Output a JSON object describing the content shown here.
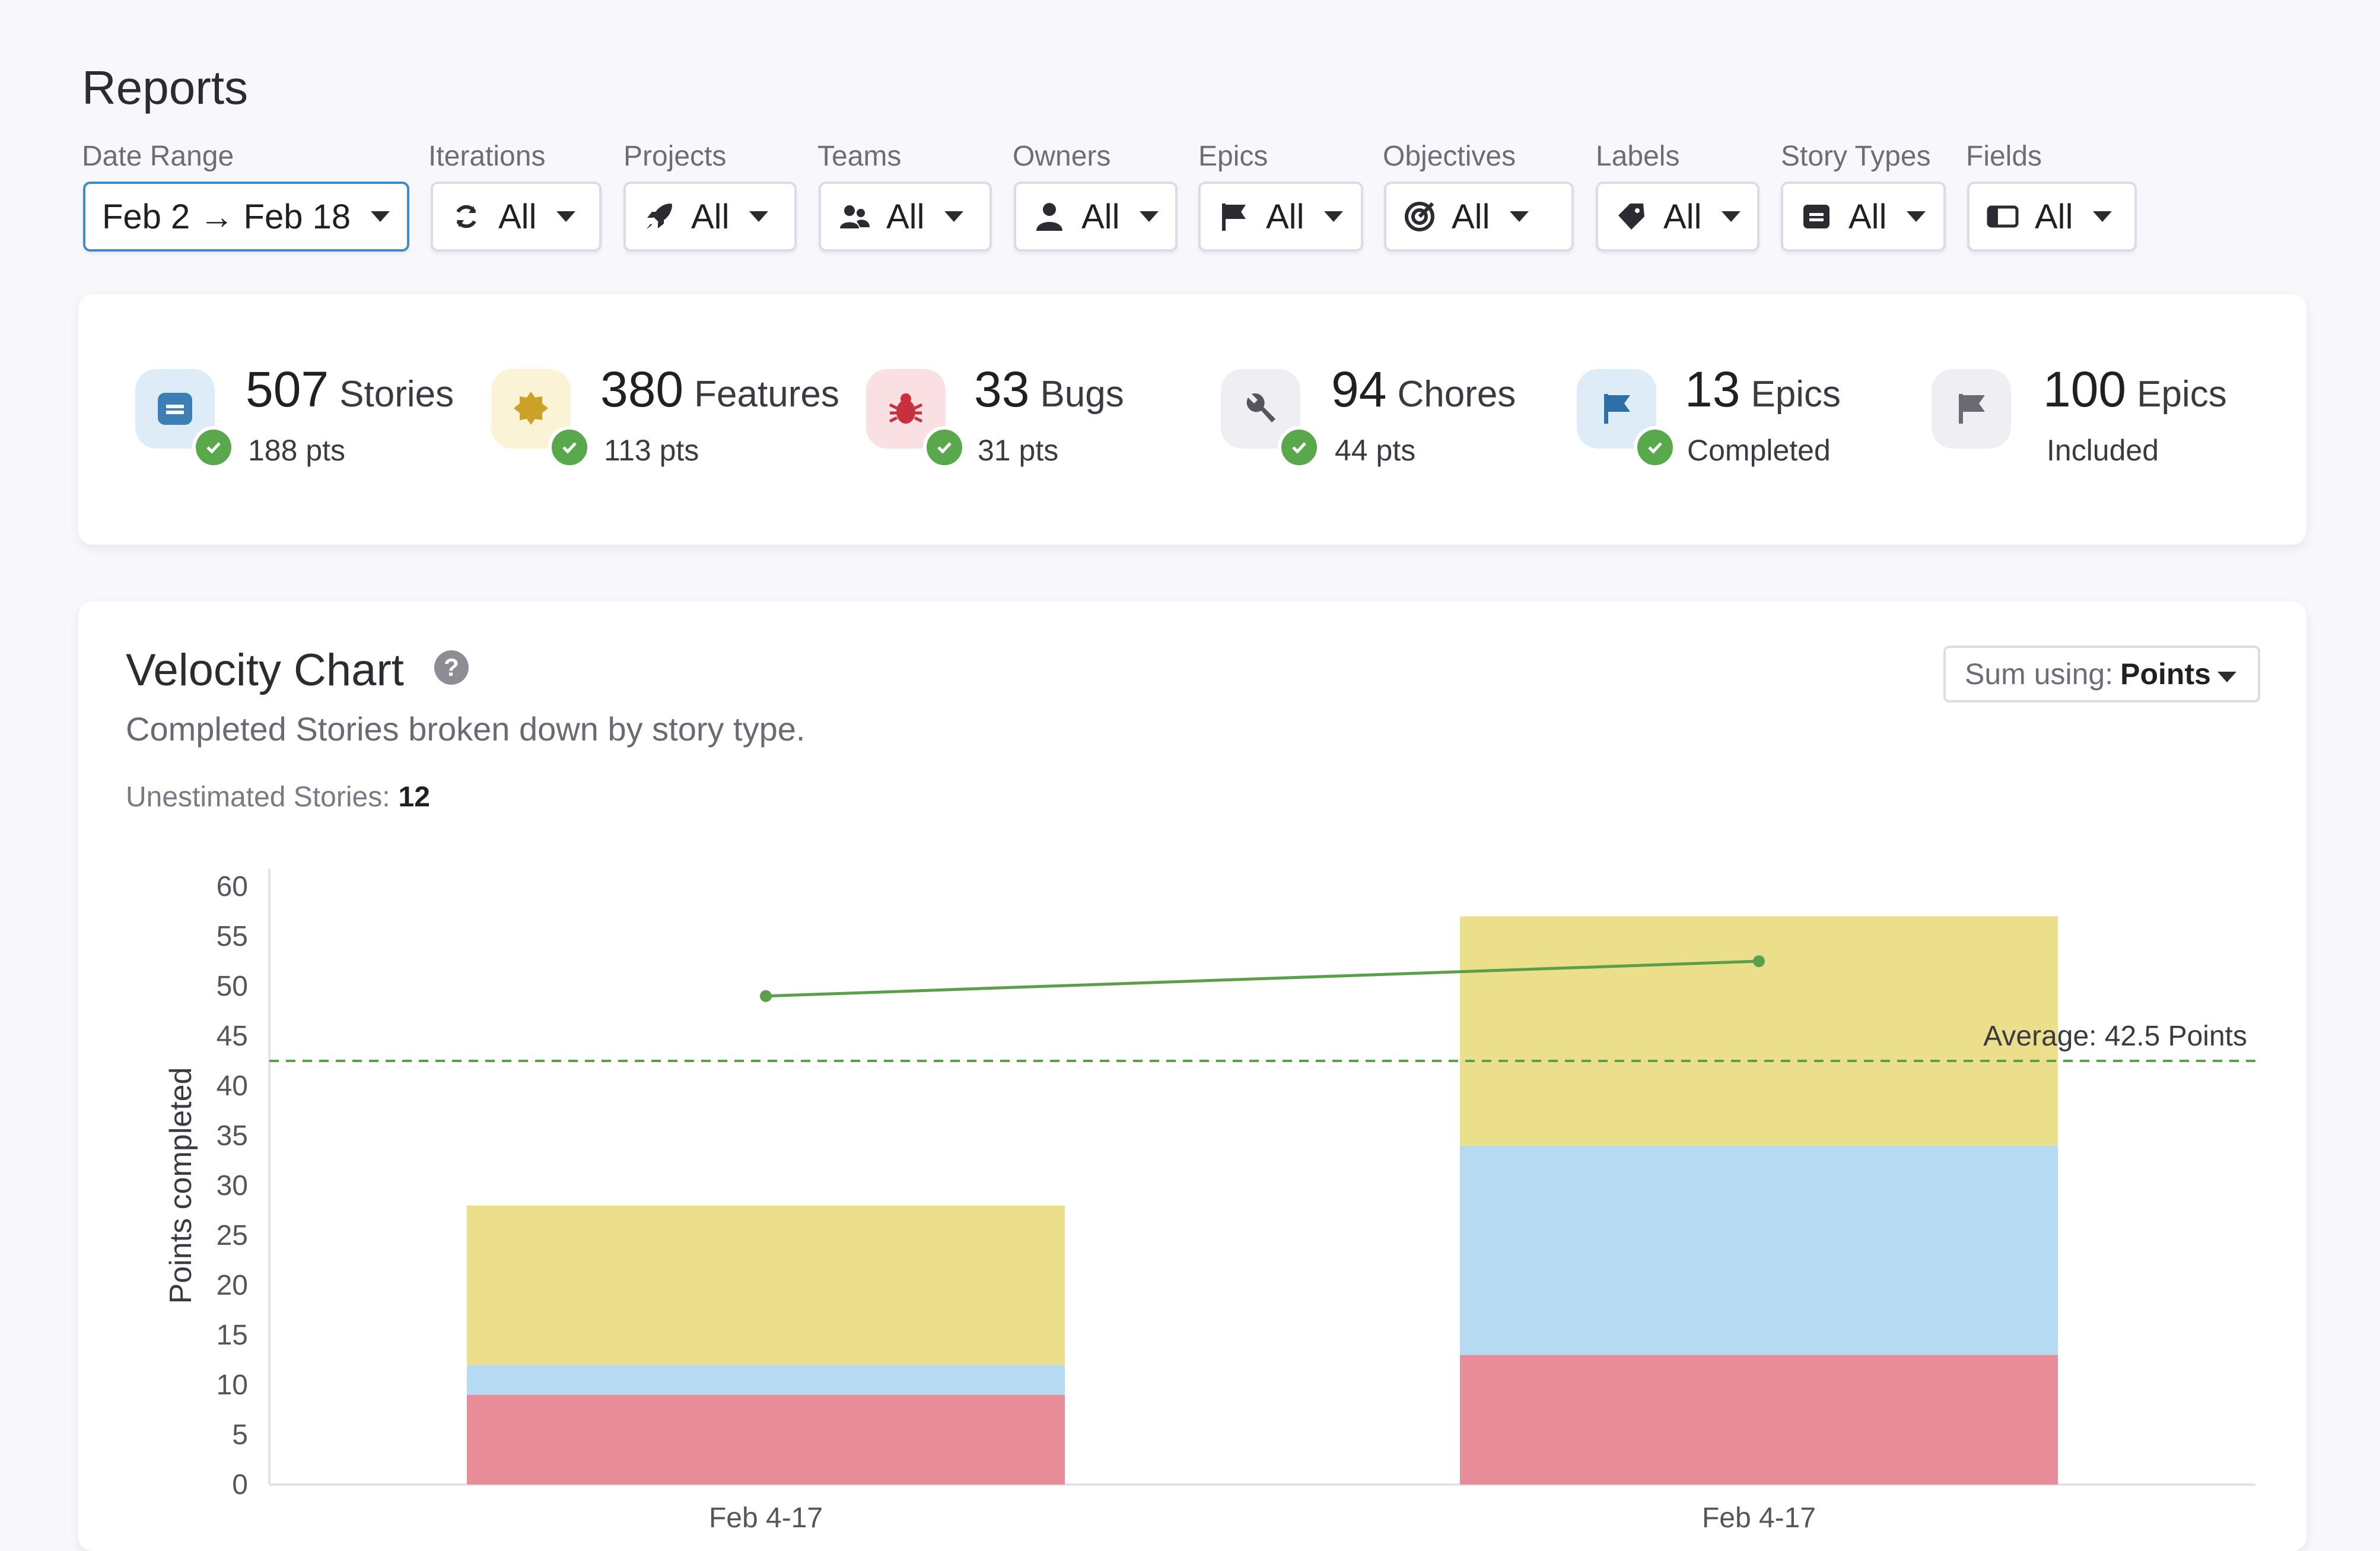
{
  "page": {
    "title": "Reports"
  },
  "filters": [
    {
      "label": "Date Range",
      "value": "Feb 2 → Feb 18",
      "icon": "none"
    },
    {
      "label": "Iterations",
      "value": "All",
      "icon": "iteration-icon"
    },
    {
      "label": "Projects",
      "value": "All",
      "icon": "rocket-icon"
    },
    {
      "label": "Teams",
      "value": "All",
      "icon": "team-icon"
    },
    {
      "label": "Owners",
      "value": "All",
      "icon": "user-icon"
    },
    {
      "label": "Epics",
      "value": "All",
      "icon": "flag-icon"
    },
    {
      "label": "Objectives",
      "value": "All",
      "icon": "target-icon"
    },
    {
      "label": "Labels",
      "value": "All",
      "icon": "tag-icon"
    },
    {
      "label": "Story Types",
      "value": "All",
      "icon": "card-icon"
    },
    {
      "label": "Fields",
      "value": "All",
      "icon": "field-icon"
    }
  ],
  "summary": [
    {
      "number": "507",
      "word": "Stories",
      "sub": "188 pts",
      "icon": "story-icon",
      "completed": true,
      "color": "#3d7fb5",
      "bg": "#deecf8"
    },
    {
      "number": "380",
      "word": "Features",
      "sub": "113 pts",
      "icon": "feature-icon",
      "completed": true,
      "color": "#c9a227",
      "bg": "#fbf3d6"
    },
    {
      "number": "33",
      "word": "Bugs",
      "sub": "31 pts",
      "icon": "bug-icon",
      "completed": true,
      "color": "#c9303e",
      "bg": "#fbe0e3"
    },
    {
      "number": "94",
      "word": "Chores",
      "sub": "44 pts",
      "icon": "wrench-icon",
      "completed": true,
      "color": "#55555e",
      "bg": "#efeff3"
    },
    {
      "number": "13",
      "word": "Epics",
      "sub": "Completed",
      "icon": "flag-icon",
      "completed": true,
      "color": "#2e6fa8",
      "bg": "#deecf8"
    },
    {
      "number": "100",
      "word": "Epics",
      "sub": "Included",
      "icon": "flag-icon",
      "completed": false,
      "color": "#6a6a74",
      "bg": "#efeff3"
    }
  ],
  "velocity": {
    "title": "Velocity Chart",
    "subtitle": "Completed Stories broken down by story type.",
    "unestimated_label": "Unestimated Stories:",
    "unestimated_value": "12",
    "sum_using_label": "Sum using:",
    "sum_using_value": "Points"
  },
  "chart_data": {
    "type": "bar",
    "stacked": true,
    "ylabel": "Points completed",
    "ylim": [
      0,
      60
    ],
    "yticks": [
      0,
      5,
      10,
      15,
      20,
      25,
      30,
      35,
      40,
      45,
      50,
      55,
      60
    ],
    "categories": [
      "Feb 4-17",
      "Feb 4-17"
    ],
    "series": [
      {
        "values": [
          9,
          13
        ],
        "color": "#e88c99"
      },
      {
        "values": [
          3,
          21
        ],
        "color": "#b5daf2"
      },
      {
        "values": [
          16,
          23
        ],
        "color": "#ebdf8b"
      }
    ],
    "trend_line": {
      "values": [
        49,
        52.5
      ],
      "color": "#5aa04a"
    },
    "average": {
      "value": 42.5,
      "label": "Average: 42.5 Points",
      "color": "#5aa04a"
    },
    "grid": false
  }
}
